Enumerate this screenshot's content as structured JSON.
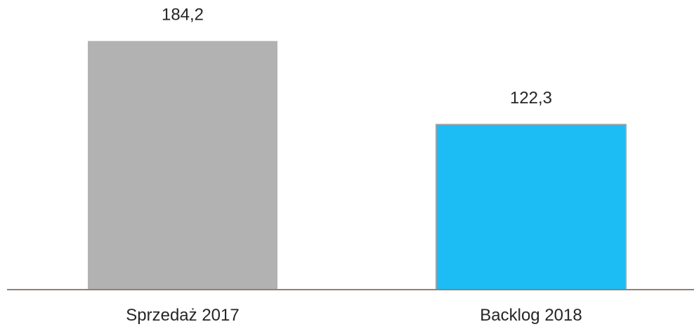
{
  "chart_data": {
    "type": "bar",
    "categories": [
      "Sprzedaż 2017",
      "Backlog 2018"
    ],
    "values": [
      184.2,
      122.3
    ],
    "value_labels": [
      "184,2",
      "122,3"
    ],
    "colors": [
      "#b2b2b2",
      "#1cbcf4"
    ],
    "axis_color": "#8c8478",
    "ylim": [
      0,
      200
    ],
    "grid": false,
    "legend": "none"
  }
}
